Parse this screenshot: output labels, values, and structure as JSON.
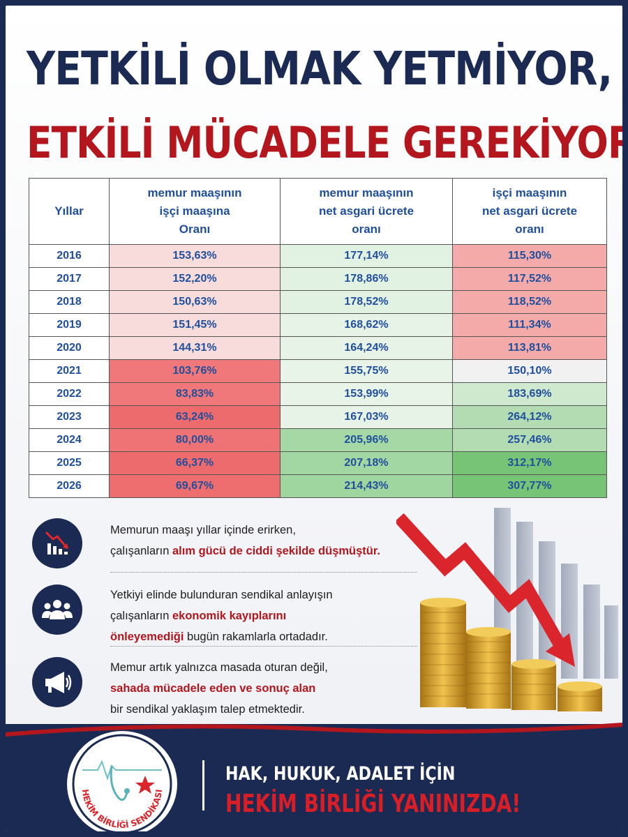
{
  "title": {
    "line1": "YETKİLİ OLMAK YETMİYOR,",
    "line2": "ETKİLİ MÜCADELE GEREKİYOR"
  },
  "table": {
    "headers": {
      "year": "Yıllar",
      "col1": [
        "memur maaşının",
        "işçi maaşına",
        "Oranı"
      ],
      "col2": [
        "memur maaşının",
        "net asgari ücrete",
        "oranı"
      ],
      "col3": [
        "işçi maaşının",
        "net asgari ücrete",
        "oranı"
      ]
    },
    "rows": [
      {
        "year": "2016",
        "c1": "153,63%",
        "c2": "177,14%",
        "c3": "115,30%"
      },
      {
        "year": "2017",
        "c1": "152,20%",
        "c2": "178,86%",
        "c3": "117,52%"
      },
      {
        "year": "2018",
        "c1": "150,63%",
        "c2": "178,52%",
        "c3": "118,52%"
      },
      {
        "year": "2019",
        "c1": "151,45%",
        "c2": "168,62%",
        "c3": "111,34%"
      },
      {
        "year": "2020",
        "c1": "144,31%",
        "c2": "164,24%",
        "c3": "113,81%"
      },
      {
        "year": "2021",
        "c1": "103,76%",
        "c2": "155,75%",
        "c3": "150,10%"
      },
      {
        "year": "2022",
        "c1": "83,83%",
        "c2": "153,99%",
        "c3": "183,69%"
      },
      {
        "year": "2023",
        "c1": "63,24%",
        "c2": "167,03%",
        "c3": "264,12%"
      },
      {
        "year": "2024",
        "c1": "80,00%",
        "c2": "205,96%",
        "c3": "257,46%"
      },
      {
        "year": "2025",
        "c1": "66,37%",
        "c2": "207,18%",
        "c3": "312,17%"
      },
      {
        "year": "2026",
        "c1": "69,67%",
        "c2": "214,43%",
        "c3": "307,77%"
      }
    ],
    "cell_colors": {
      "c1": [
        "#f8dcdc",
        "#f8dcdc",
        "#f8dcdc",
        "#f8dcdc",
        "#f8dcdc",
        "#f0787a",
        "#f0787a",
        "#ee6b6d",
        "#ef7274",
        "#ee6b6d",
        "#ee6e70"
      ],
      "c2": [
        "#e2f2e2",
        "#e2f2e2",
        "#e2f2e2",
        "#e6f3e6",
        "#e6f3e6",
        "#e8f4e8",
        "#e8f4e8",
        "#e6f3e6",
        "#a6d8a6",
        "#a2d6a2",
        "#9fd59f"
      ],
      "c3": [
        "#f5aaaa",
        "#f5aaaa",
        "#f5aaaa",
        "#f5aaaa",
        "#f5aaaa",
        "#f1f1f1",
        "#cfe9cf",
        "#b3dcb3",
        "#b3dcb3",
        "#77c477",
        "#77c477"
      ]
    }
  },
  "bullets": [
    {
      "icon": "chart-down-icon",
      "lines": [
        [
          {
            "t": "Memurun maaşı yıllar içinde erirken,"
          }
        ],
        [
          {
            "t": "çalışanların "
          },
          {
            "t": "alım gücü de ciddi şekilde düşmüştür.",
            "hl": true
          }
        ]
      ]
    },
    {
      "icon": "people-group-icon",
      "lines": [
        [
          {
            "t": "Yetkiyi elinde bulunduran sendikal anlayışın"
          }
        ],
        [
          {
            "t": "çalışanların "
          },
          {
            "t": "ekonomik kayıplarını",
            "hl": true
          }
        ],
        [
          {
            "t": "önleyemediği",
            "hl": true
          },
          {
            "t": " bugün rakamlarla ortadadır."
          }
        ]
      ]
    },
    {
      "icon": "megaphone-icon",
      "lines": [
        [
          {
            "t": "Memur artık yalnızca masada oturan değil,"
          }
        ],
        [
          {
            "t": "sahada mücadele eden ve sonuç alan",
            "hl": true
          }
        ],
        [
          {
            "t": "bir sendikal yaklaşım talep etmektedir."
          }
        ]
      ]
    }
  ],
  "footer": {
    "logo_text": "HEKİM BİRLİĞİ SENDİKASI",
    "slogan_line1": "HAK, HUKUK, ADALET İÇİN",
    "slogan_line2": "HEKİM BİRLİĞİ YANINIZDA!"
  },
  "colors": {
    "navy": "#1b2a52",
    "red": "#b3171d",
    "table_text": "#1f4f9c",
    "coin_gold": "#d4a23a",
    "arrow_red": "#d9252b"
  }
}
